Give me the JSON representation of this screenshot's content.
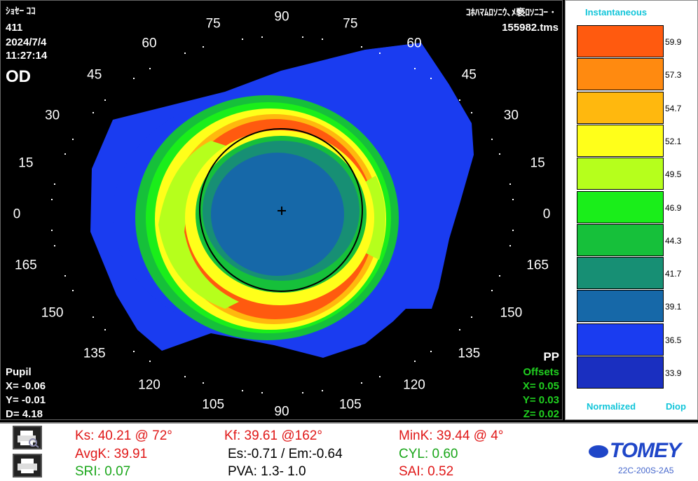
{
  "header": {
    "name": "ｼｮｾｰ ｺｺ",
    "id": "411",
    "date": "2024/7/4",
    "time": "11:27:14",
    "eye": "OD",
    "title": "ｺﾎﾊﾏﾑﾛｿﾆｳ､ﾒ褻ﾛｿﾆｺｰ ･",
    "file": "155982.tms"
  },
  "axis_ticks": [
    "90",
    "75",
    "60",
    "45",
    "30",
    "15",
    "0",
    "165",
    "150",
    "135",
    "120",
    "105",
    "90",
    "105",
    "120",
    "135",
    "150",
    "165",
    "0",
    "15",
    "30",
    "45",
    "60",
    "75"
  ],
  "pupil": {
    "label": "Pupil",
    "x": "X= -0.06",
    "y": "Y= -0.01",
    "d": "D=  4.18"
  },
  "offsets": {
    "pp": "PP",
    "label": "Offsets",
    "x": "X=  0.05",
    "y": "Y=  0.03",
    "z": "Z=  0.02"
  },
  "scale": {
    "title": "Instantaneous",
    "footer_left": "Normalized",
    "footer_right": "Diop",
    "steps": [
      {
        "value": "59.9",
        "color": "#ff5a0f"
      },
      {
        "value": "57.3",
        "color": "#ff8a10"
      },
      {
        "value": "54.7",
        "color": "#ffb80e"
      },
      {
        "value": "52.1",
        "color": "#ffff1a"
      },
      {
        "value": "49.5",
        "color": "#b6ff1c"
      },
      {
        "value": "46.9",
        "color": "#1aee1a"
      },
      {
        "value": "44.3",
        "color": "#16c03a"
      },
      {
        "value": "41.7",
        "color": "#178f74"
      },
      {
        "value": "39.1",
        "color": "#1668a8"
      },
      {
        "value": "36.5",
        "color": "#1a3cf0"
      },
      {
        "value": "33.9",
        "color": "#1a2fc0"
      }
    ]
  },
  "stats": {
    "ks": "Ks: 40.21 @ 72°",
    "kf": "Kf: 39.61 @162°",
    "mink": "MinK: 39.44 @   4°",
    "avgk": "AvgK: 39.91",
    "es": "Es:-0.71 / Em:-0.64",
    "cyl": "CYL:  0.60",
    "sri": "SRI: 0.07",
    "pva": "PVA:   1.3-   1.0",
    "sai": "SAI: 0.52"
  },
  "brand": {
    "logo": "TOMEY",
    "model": "22C-200S-2A5"
  },
  "icons": [
    "print-preview-icon",
    "print-icon"
  ]
}
